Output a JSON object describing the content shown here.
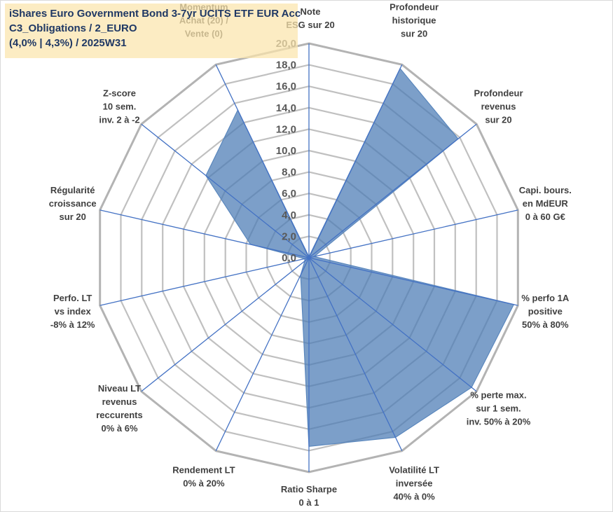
{
  "window_title": "",
  "title_box": {
    "line1": "iShares Euro Government Bond 3-7yr UCITS ETF EUR Acc",
    "line2": "C3_Obligations / 2_EURO",
    "line3": "(4,0% | 4,3%) / 2025W31"
  },
  "colors": {
    "fill": "#4a7ab4",
    "grid": "#c0c0c0",
    "spoke": "#4472c4",
    "title_bg": "#fbe5ac",
    "title_text": "#1f3864"
  },
  "chart_data": {
    "type": "radar",
    "title": "",
    "rlim": [
      0,
      20
    ],
    "rticks": [
      "0,0",
      "2,0",
      "4,0",
      "6,0",
      "8,0",
      "10,0",
      "12,0",
      "14,0",
      "16,0",
      "18,0",
      "20,0"
    ],
    "grid": true,
    "legend": "none",
    "axes": [
      [
        "Note",
        "ESG sur 20"
      ],
      [
        "Profondeur",
        "historique",
        "sur 20"
      ],
      [
        "Profondeur",
        "revenus",
        "sur 20"
      ],
      [
        "Capi. bours.",
        "en MdEUR",
        "0 à 60 G€"
      ],
      [
        "% perfo 1A",
        "positive",
        "50% à 80%"
      ],
      [
        "% perte max.",
        "sur 1 sem.",
        "inv. 50% à 20%"
      ],
      [
        "Volatilité LT",
        "inversée",
        "40% à 0%"
      ],
      [
        "Ratio Sharpe",
        "0 à 1"
      ],
      [
        "Rendement LT",
        "0% à 20%"
      ],
      [
        "Niveau LT",
        "revenus",
        "reccurents",
        "0% à 6%"
      ],
      [
        "Perfo. LT",
        "vs index",
        "-8% à 12%"
      ],
      [
        "Régularité",
        "croissance",
        "sur 20"
      ],
      [
        "Z-score",
        "10 sem.",
        "inv. 2 à -2"
      ],
      [
        "Momentum",
        "Achat (20) /",
        "Vente (0)"
      ]
    ],
    "series": [
      {
        "values": [
          0.1,
          19.6,
          17.8,
          0.5,
          19.6,
          19.4,
          18.6,
          17.6,
          1.8,
          0.5,
          0.4,
          5.6,
          12.3,
          15.3
        ]
      }
    ]
  }
}
